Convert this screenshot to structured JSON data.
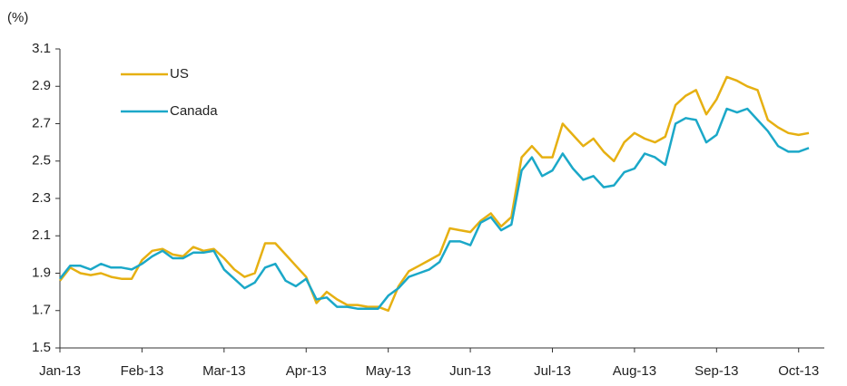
{
  "chart_data": {
    "type": "line",
    "y_label": "(%)",
    "categories": [
      "Jan-13",
      null,
      null,
      null,
      null,
      null,
      null,
      null,
      "Feb-13",
      null,
      null,
      null,
      null,
      null,
      null,
      null,
      "Mar-13",
      null,
      null,
      null,
      null,
      null,
      null,
      null,
      "Apr-13",
      null,
      null,
      null,
      null,
      null,
      null,
      null,
      "May-13",
      null,
      null,
      null,
      null,
      null,
      null,
      null,
      "Jun-13",
      null,
      null,
      null,
      null,
      null,
      null,
      null,
      "Jul-13",
      null,
      null,
      null,
      null,
      null,
      null,
      null,
      "Aug-13",
      null,
      null,
      null,
      null,
      null,
      null,
      null,
      "Sep-13",
      null,
      null,
      null,
      null,
      null,
      null,
      null,
      "Oct-13",
      null
    ],
    "series": [
      {
        "name": "US",
        "color": "#e6b012",
        "values": [
          1.86,
          1.93,
          1.9,
          1.89,
          1.9,
          1.88,
          1.87,
          1.87,
          1.97,
          2.02,
          2.03,
          2.0,
          1.99,
          2.04,
          2.02,
          2.03,
          1.98,
          1.92,
          1.88,
          1.9,
          2.06,
          2.06,
          2.0,
          1.94,
          1.88,
          1.74,
          1.8,
          1.76,
          1.73,
          1.73,
          1.72,
          1.72,
          1.7,
          1.83,
          1.91,
          1.94,
          1.97,
          2.0,
          2.14,
          2.13,
          2.12,
          2.18,
          2.22,
          2.15,
          2.2,
          2.52,
          2.58,
          2.52,
          2.52,
          2.7,
          2.64,
          2.58,
          2.62,
          2.55,
          2.5,
          2.6,
          2.65,
          2.62,
          2.6,
          2.63,
          2.8,
          2.85,
          2.88,
          2.75,
          2.83,
          2.95,
          2.93,
          2.9,
          2.88,
          2.72,
          2.68,
          2.65,
          2.64,
          2.65
        ]
      },
      {
        "name": "Canada",
        "color": "#1ba8c8",
        "values": [
          1.87,
          1.94,
          1.94,
          1.92,
          1.95,
          1.93,
          1.93,
          1.92,
          1.95,
          1.99,
          2.02,
          1.98,
          1.98,
          2.01,
          2.01,
          2.02,
          1.92,
          1.87,
          1.82,
          1.85,
          1.93,
          1.95,
          1.86,
          1.83,
          1.87,
          1.76,
          1.77,
          1.72,
          1.72,
          1.71,
          1.71,
          1.71,
          1.78,
          1.82,
          1.88,
          1.9,
          1.92,
          1.96,
          2.07,
          2.07,
          2.05,
          2.17,
          2.2,
          2.13,
          2.16,
          2.45,
          2.52,
          2.42,
          2.45,
          2.54,
          2.46,
          2.4,
          2.42,
          2.36,
          2.37,
          2.44,
          2.46,
          2.54,
          2.52,
          2.48,
          2.7,
          2.73,
          2.72,
          2.6,
          2.64,
          2.78,
          2.76,
          2.78,
          2.72,
          2.66,
          2.58,
          2.55,
          2.55,
          2.57
        ]
      }
    ],
    "ylim": [
      1.5,
      3.1
    ],
    "yticks": [
      1.5,
      1.7,
      1.9,
      2.1,
      2.3,
      2.5,
      2.7,
      2.9,
      3.1
    ],
    "grid": false,
    "legend": "upper left"
  }
}
